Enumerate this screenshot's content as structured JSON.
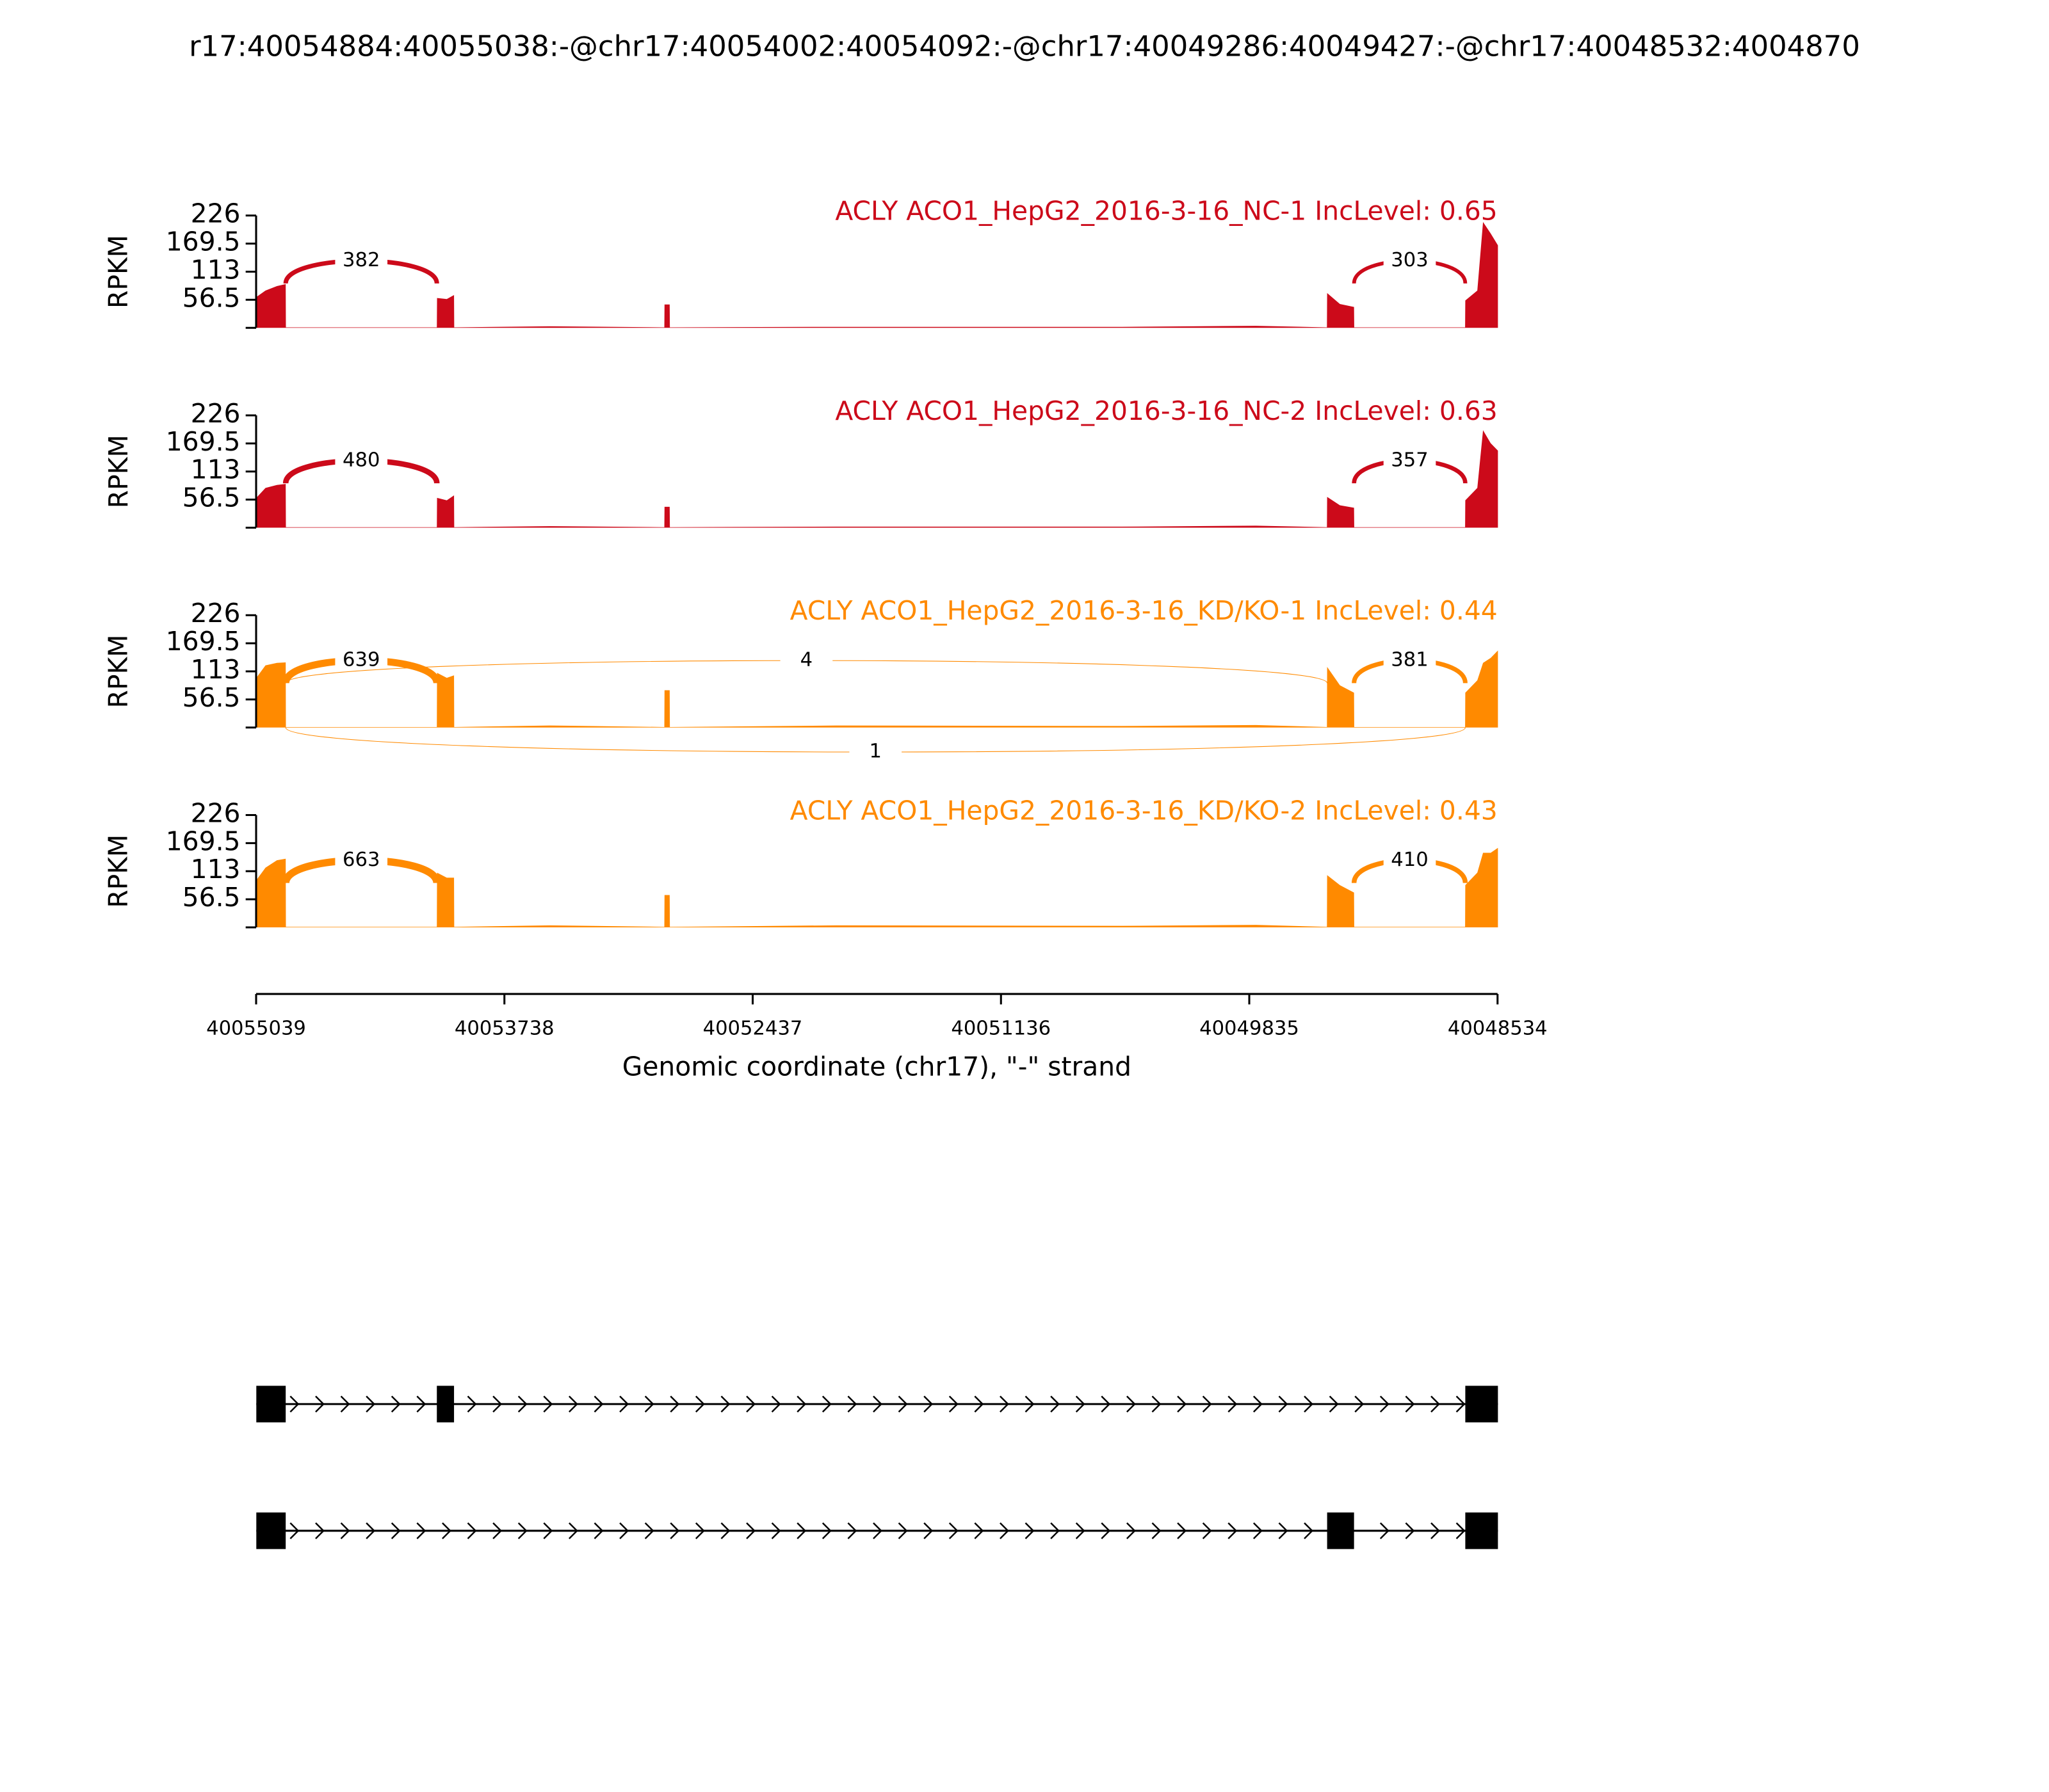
{
  "chart_data": {
    "type": "sashimi",
    "title": "r17:40054884:40055038:-@chr17:40054002:40054092:-@chr17:40049286:40049427:-@chr17:40048532:4004870",
    "xlabel": "Genomic coordinate (chr17), \"-\" strand",
    "xlim": [
      40055039,
      40048534
    ],
    "xticks": [
      40055039,
      40053738,
      40052437,
      40051136,
      40049835,
      40048534
    ],
    "coverage_x": [
      40055038,
      40054990,
      40054930,
      40054884,
      40054883,
      40054092,
      40054091,
      40054040,
      40054002,
      40054001,
      40053500,
      40052900,
      40052899,
      40052872,
      40052871,
      40052000,
      40050500,
      40049800,
      40049428,
      40049427,
      40049360,
      40049286,
      40049285,
      40048704,
      40048703,
      40048640,
      40048610,
      40048570,
      40048532
    ],
    "tracks": [
      {
        "label": "ACLY ACO1_HepG2_2016-3-16_NC-1 IncLevel: 0.65",
        "color": "#cc0a1a",
        "ylabel": "RPKM",
        "ylim": [
          0,
          226
        ],
        "yticks": [
          56.5,
          113,
          169.5,
          226
        ],
        "coverage": [
          62,
          75,
          84,
          88,
          1,
          1,
          60,
          58,
          66,
          1,
          3,
          1,
          47,
          47,
          1,
          2,
          2,
          4,
          1,
          70,
          48,
          42,
          1,
          1,
          55,
          75,
          213,
          190,
          166
        ],
        "junctions": [
          {
            "from": 40054884,
            "to": 40054092,
            "count": 382,
            "side": "above"
          },
          {
            "from": 40049286,
            "to": 40048703,
            "count": 303,
            "side": "above"
          }
        ]
      },
      {
        "label": "ACLY ACO1_HepG2_2016-3-16_NC-2 IncLevel: 0.63",
        "color": "#cc0a1a",
        "ylabel": "RPKM",
        "ylim": [
          0,
          226
        ],
        "yticks": [
          56.5,
          113,
          169.5,
          226
        ],
        "coverage": [
          60,
          80,
          86,
          88,
          1,
          1,
          60,
          55,
          65,
          1,
          3,
          1,
          42,
          42,
          1,
          2,
          2,
          4,
          1,
          62,
          45,
          40,
          1,
          1,
          55,
          80,
          196,
          170,
          155
        ],
        "junctions": [
          {
            "from": 40054884,
            "to": 40054092,
            "count": 480,
            "side": "above"
          },
          {
            "from": 40049286,
            "to": 40048703,
            "count": 357,
            "side": "above"
          }
        ]
      },
      {
        "label": "ACLY ACO1_HepG2_2016-3-16_KD/KO-1 IncLevel: 0.44",
        "color": "#ff8a00",
        "ylabel": "RPKM",
        "ylim": [
          0,
          226
        ],
        "yticks": [
          56.5,
          113,
          169.5,
          226
        ],
        "coverage": [
          100,
          125,
          130,
          131,
          1,
          1,
          110,
          100,
          105,
          1,
          4,
          1,
          75,
          75,
          1,
          4,
          3,
          5,
          1,
          122,
          85,
          70,
          1,
          1,
          70,
          95,
          130,
          140,
          155
        ],
        "junctions": [
          {
            "from": 40054884,
            "to": 40054092,
            "count": 639,
            "side": "above"
          },
          {
            "from": 40054884,
            "to": 40049427,
            "count": 4,
            "side": "above"
          },
          {
            "from": 40049286,
            "to": 40048703,
            "count": 381,
            "side": "above"
          },
          {
            "from": 40054884,
            "to": 40048703,
            "count": 1,
            "side": "below"
          }
        ]
      },
      {
        "label": "ACLY ACO1_HepG2_2016-3-16_KD/KO-2 IncLevel: 0.43",
        "color": "#ff8a00",
        "ylabel": "RPKM",
        "ylim": [
          0,
          226
        ],
        "yticks": [
          56.5,
          113,
          169.5,
          226
        ],
        "coverage": [
          95,
          120,
          135,
          138,
          1,
          1,
          110,
          100,
          100,
          1,
          4,
          1,
          65,
          65,
          1,
          4,
          3,
          5,
          1,
          105,
          85,
          70,
          1,
          1,
          85,
          110,
          150,
          150,
          160
        ],
        "junctions": [
          {
            "from": 40054884,
            "to": 40054092,
            "count": 663,
            "side": "above"
          },
          {
            "from": 40049286,
            "to": 40048703,
            "count": 410,
            "side": "above"
          }
        ]
      }
    ],
    "transcripts": [
      {
        "exons": [
          [
            40055038,
            40054884
          ],
          [
            40054092,
            40054002
          ],
          [
            40048703,
            40048532
          ]
        ]
      },
      {
        "exons": [
          [
            40055038,
            40054884
          ],
          [
            40049427,
            40049286
          ],
          [
            40048703,
            40048532
          ]
        ]
      }
    ]
  }
}
